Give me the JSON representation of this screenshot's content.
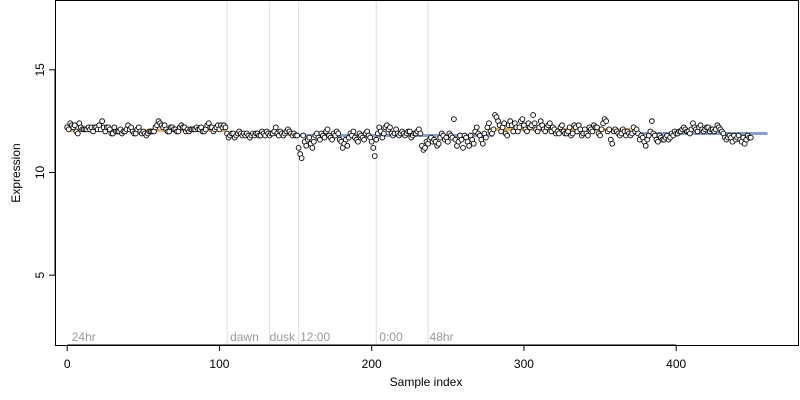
{
  "chart_data": {
    "type": "scatter",
    "title": "",
    "xlabel": "Sample index",
    "ylabel": "Expression",
    "xlim": [
      -8,
      480
    ],
    "ylim": [
      1.6,
      18.4
    ],
    "x_ticks": [
      0,
      100,
      200,
      300,
      400
    ],
    "y_ticks": [
      5,
      10,
      15
    ],
    "grid": false,
    "colors": {
      "point_stroke": "#000000",
      "point_fill": "#ffffff",
      "group_blue": "#6f8fd0",
      "group_orange": "#e8a23c",
      "vline": "#dddddd",
      "annotation": "#999999"
    },
    "vlines": [
      105,
      133,
      152,
      203,
      237
    ],
    "annotations": [
      {
        "x": 3,
        "label": "24hr"
      },
      {
        "x": 107,
        "label": "dawn"
      },
      {
        "x": 133,
        "label": "dusk"
      },
      {
        "x": 153,
        "label": "12:00"
      },
      {
        "x": 205,
        "label": "0:00"
      },
      {
        "x": 238,
        "label": "48hr"
      }
    ],
    "annotation_y": 2.0,
    "segments": [
      {
        "x0": 0,
        "x1": 105,
        "level": 12.05,
        "color": "group_orange"
      },
      {
        "x0": 105,
        "x1": 152,
        "level": 11.85,
        "color": "group_orange"
      },
      {
        "x0": 152,
        "x1": 237,
        "level": 11.8,
        "color": "group_blue"
      },
      {
        "x0": 237,
        "x1": 280,
        "level": 11.8,
        "color": "group_blue"
      },
      {
        "x0": 280,
        "x1": 370,
        "level": 12.1,
        "color": "group_orange"
      },
      {
        "x0": 370,
        "x1": 460,
        "level": 11.9,
        "color": "group_blue"
      }
    ],
    "points_y": [
      12.2,
      12.1,
      12.4,
      12.3,
      12.2,
      12.3,
      12.0,
      11.9,
      12.4,
      12.2,
      12.1,
      12.1,
      12.1,
      12.1,
      12.2,
      12.1,
      12.2,
      12.0,
      12.2,
      12.2,
      12.1,
      12.3,
      12.1,
      12.5,
      12.2,
      12.0,
      12.2,
      12.2,
      12.1,
      11.9,
      11.9,
      12.2,
      12.0,
      12.0,
      12.0,
      12.1,
      11.9,
      12.0,
      12.0,
      12.1,
      12.3,
      12.1,
      12.2,
      12.0,
      11.9,
      11.9,
      12.1,
      12.2,
      12.0,
      11.9,
      12.0,
      11.9,
      11.8,
      11.9,
      12.0,
      12.0,
      12.0,
      12.0,
      12.2,
      12.3,
      12.5,
      12.4,
      12.3,
      12.2,
      12.3,
      12.1,
      12.0,
      12.0,
      12.2,
      12.2,
      12.1,
      12.1,
      12.0,
      12.0,
      12.2,
      12.3,
      12.2,
      12.2,
      12.0,
      12.1,
      12.0,
      12.1,
      12.1,
      12.1,
      12.1,
      12.2,
      12.1,
      12.1,
      12.2,
      12.0,
      12.0,
      12.1,
      12.3,
      12.4,
      12.2,
      12.2,
      12.0,
      12.1,
      12.2,
      12.3,
      12.1,
      12.3,
      12.2,
      12.3,
      12.2,
      11.9,
      11.7,
      11.8,
      11.9,
      11.9,
      11.7,
      11.8,
      11.9,
      12.0,
      11.9,
      11.8,
      11.9,
      11.8,
      11.9,
      11.8,
      11.7,
      11.8,
      11.9,
      11.8,
      11.9,
      11.9,
      11.8,
      11.8,
      12.0,
      11.9,
      11.8,
      12.0,
      11.9,
      11.8,
      11.9,
      11.9,
      12.0,
      12.2,
      11.9,
      11.8,
      12.0,
      11.9,
      11.8,
      11.9,
      12.0,
      12.1,
      12.0,
      11.9,
      11.8,
      11.9,
      11.8,
      11.8,
      11.2,
      10.9,
      10.7,
      11.8,
      11.5,
      11.3,
      11.6,
      11.7,
      11.4,
      11.2,
      11.5,
      11.8,
      11.9,
      11.7,
      11.6,
      11.9,
      11.8,
      11.7,
      12.0,
      12.1,
      11.8,
      11.7,
      11.6,
      11.9,
      11.8,
      12.0,
      11.9,
      11.6,
      11.5,
      11.2,
      11.4,
      11.6,
      11.3,
      11.7,
      11.9,
      11.8,
      12.0,
      11.7,
      11.6,
      11.5,
      11.9,
      11.8,
      11.7,
      11.6,
      11.9,
      12.0,
      11.8,
      11.7,
      11.5,
      11.2,
      10.8,
      11.6,
      11.9,
      12.2,
      12.0,
      11.7,
      11.9,
      12.2,
      12.3,
      12.1,
      12.2,
      11.9,
      11.8,
      11.9,
      12.1,
      11.9,
      11.8,
      11.9,
      12.0,
      11.9,
      11.8,
      11.9,
      12.0,
      12.0,
      11.7,
      11.8,
      11.9,
      11.9,
      12.0,
      12.1,
      11.9,
      11.3,
      11.1,
      11.2,
      11.5,
      11.4,
      11.6,
      11.7,
      11.5,
      11.6,
      11.5,
      11.3,
      11.4,
      11.7,
      11.9,
      11.8,
      11.6,
      11.7,
      11.5,
      11.9,
      11.8,
      11.7,
      12.6,
      11.6,
      11.3,
      11.5,
      11.8,
      11.6,
      11.2,
      11.8,
      11.7,
      11.5,
      11.3,
      11.8,
      11.6,
      11.4,
      12.0,
      12.2,
      11.9,
      11.8,
      11.6,
      11.4,
      11.9,
      11.7,
      12.2,
      12.4,
      12.0,
      11.9,
      12.1,
      12.8,
      12.7,
      12.5,
      12.3,
      12.0,
      12.2,
      12.4,
      11.9,
      11.8,
      12.3,
      12.5,
      12.3,
      12.0,
      12.4,
      12.2,
      12.0,
      12.2,
      12.5,
      12.6,
      12.3,
      12.1,
      12.0,
      12.4,
      12.2,
      12.3,
      12.8,
      12.4,
      12.1,
      12.0,
      12.2,
      12.5,
      12.3,
      12.1,
      12.0,
      12.2,
      12.3,
      12.4,
      12.0,
      12.2,
      12.1,
      11.9,
      12.0,
      11.9,
      12.2,
      12.3,
      12.0,
      11.9,
      11.9,
      12.0,
      12.2,
      11.8,
      11.9,
      12.3,
      12.2,
      12.0,
      12.3,
      12.1,
      11.8,
      11.9,
      12.1,
      11.9,
      11.8,
      12.2,
      12.1,
      12.0,
      12.3,
      12.2,
      12.2,
      11.9,
      11.8,
      12.1,
      12.4,
      12.6,
      12.5,
      12.0,
      12.1,
      11.6,
      11.4,
      12.0,
      12.1,
      12.0,
      11.9,
      11.8,
      11.9,
      12.1,
      12.0,
      11.8,
      12.0,
      11.9,
      11.8,
      11.9,
      12.2,
      12.0,
      12.1,
      11.9,
      11.6,
      11.8,
      11.7,
      11.5,
      11.3,
      11.6,
      11.8,
      12.0,
      12.5,
      11.9,
      11.8,
      11.6,
      11.5,
      11.8,
      11.7,
      11.6,
      11.6,
      11.7,
      11.8,
      11.6,
      11.7,
      11.9,
      11.8,
      12.0,
      11.9,
      11.9,
      12.0,
      12.0,
      12.1,
      12.2,
      12.1,
      12.0,
      12.0,
      11.9,
      12.1,
      12.4,
      12.2,
      12.1,
      12.0,
      12.2,
      12.3,
      12.1,
      12.0,
      12.1,
      12.2,
      12.2,
      12.0,
      12.1,
      12.1,
      12.0,
      12.1,
      12.3,
      12.2,
      12.1,
      12.0,
      11.9,
      11.7,
      11.6,
      11.7,
      11.8,
      11.7,
      11.5,
      11.8,
      11.6,
      11.7,
      11.8,
      11.6,
      11.5,
      11.7,
      11.4,
      11.6,
      11.8,
      11.7,
      11.7
    ]
  }
}
